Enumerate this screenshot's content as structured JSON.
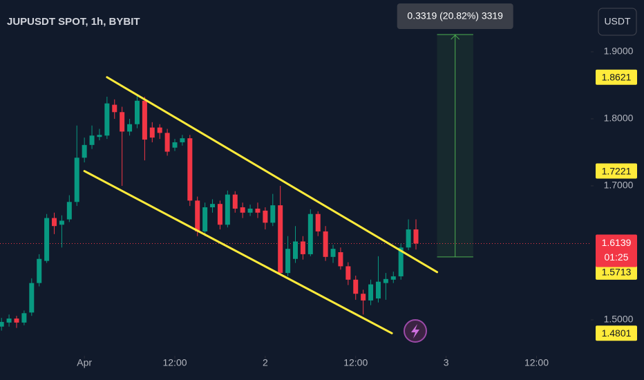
{
  "chart_data": {
    "type": "candlestick",
    "title": "JUPUSDT SPOT, 1h, BYBIT",
    "currency": "USDT",
    "up_color": "#089981",
    "down_color": "#f23645",
    "x": [
      -11,
      -10,
      -9,
      -8,
      -7,
      -6,
      -5,
      -4,
      -3,
      -2,
      -1,
      0,
      1,
      2,
      3,
      4,
      5,
      6,
      7,
      8,
      9,
      10,
      11,
      12,
      13,
      14,
      15,
      16,
      17,
      18,
      19,
      20,
      21,
      22,
      23,
      24,
      25,
      26,
      27,
      28,
      29,
      30,
      31,
      32,
      33,
      34,
      35,
      36,
      37,
      38,
      39,
      40,
      41,
      42,
      43,
      44
    ],
    "open": [
      1.49,
      1.496,
      1.502,
      1.496,
      1.511,
      1.555,
      1.588,
      1.652,
      1.642,
      1.65,
      1.676,
      1.742,
      1.761,
      1.773,
      1.775,
      1.821,
      1.81,
      1.781,
      1.792,
      1.827,
      1.787,
      1.787,
      1.779,
      1.757,
      1.765,
      1.771,
      1.678,
      1.632,
      1.668,
      1.673,
      1.642,
      1.687,
      1.668,
      1.66,
      1.666,
      1.663,
      1.645,
      1.671,
      1.57,
      1.591,
      1.617,
      1.598,
      1.658,
      1.632,
      1.594,
      1.601,
      1.58,
      1.56,
      1.539,
      1.529,
      1.532,
      1.555,
      1.56,
      1.565,
      1.608,
      1.635
    ],
    "high": [
      1.503,
      1.508,
      1.506,
      1.514,
      1.562,
      1.598,
      1.658,
      1.66,
      1.656,
      1.686,
      1.79,
      1.772,
      1.79,
      1.785,
      1.833,
      1.829,
      1.818,
      1.8,
      1.836,
      1.833,
      1.795,
      1.792,
      1.785,
      1.77,
      1.776,
      1.776,
      1.684,
      1.675,
      1.68,
      1.678,
      1.693,
      1.692,
      1.675,
      1.672,
      1.675,
      1.668,
      1.688,
      1.7,
      1.625,
      1.64,
      1.625,
      1.665,
      1.662,
      1.64,
      1.612,
      1.608,
      1.586,
      1.566,
      1.545,
      1.56,
      1.595,
      1.57,
      1.572,
      1.614,
      1.65,
      1.65
    ],
    "low": [
      1.484,
      1.49,
      1.488,
      1.492,
      1.506,
      1.55,
      1.585,
      1.628,
      1.608,
      1.646,
      1.67,
      1.735,
      1.755,
      1.768,
      1.77,
      1.8,
      1.7,
      1.775,
      1.786,
      1.738,
      1.765,
      1.77,
      1.745,
      1.752,
      1.76,
      1.67,
      1.625,
      1.625,
      1.66,
      1.635,
      1.638,
      1.66,
      1.652,
      1.655,
      1.652,
      1.635,
      1.64,
      1.567,
      1.565,
      1.585,
      1.59,
      1.595,
      1.625,
      1.588,
      1.585,
      1.575,
      1.552,
      1.53,
      1.508,
      1.522,
      1.526,
      1.53,
      1.555,
      1.56,
      1.604,
      1.605
    ],
    "close": [
      1.497,
      1.502,
      1.496,
      1.51,
      1.555,
      1.591,
      1.652,
      1.64,
      1.648,
      1.676,
      1.742,
      1.761,
      1.775,
      1.776,
      1.823,
      1.81,
      1.781,
      1.792,
      1.827,
      1.769,
      1.772,
      1.779,
      1.751,
      1.765,
      1.771,
      1.678,
      1.632,
      1.668,
      1.673,
      1.642,
      1.687,
      1.666,
      1.66,
      1.666,
      1.66,
      1.645,
      1.671,
      1.57,
      1.606,
      1.617,
      1.598,
      1.658,
      1.632,
      1.594,
      1.606,
      1.58,
      1.56,
      1.539,
      1.529,
      1.553,
      1.557,
      1.561,
      1.565,
      1.608,
      1.635,
      1.6139
    ],
    "xlim": [
      -11.2,
      67.2
    ],
    "xticks": [
      {
        "value": 0,
        "label": "Apr"
      },
      {
        "value": 12,
        "label": "12:00"
      },
      {
        "value": 24,
        "label": "2"
      },
      {
        "value": 36,
        "label": "12:00"
      },
      {
        "value": 48,
        "label": "3"
      },
      {
        "value": 60,
        "label": "12:00"
      }
    ],
    "ylim": [
      1.4464,
      1.9773
    ],
    "yticks": [
      {
        "value": 1.5,
        "label": "1.5000"
      },
      {
        "value": 1.7,
        "label": "1.7000"
      },
      {
        "value": 1.8,
        "label": "1.8000"
      },
      {
        "value": 1.9,
        "label": "1.9000"
      }
    ],
    "channels": [
      {
        "x": [
          3.0,
          46.8
        ],
        "values": [
          1.8621,
          1.5713
        ],
        "color": "#ffeb3b"
      },
      {
        "x": [
          0.0,
          40.8
        ],
        "values": [
          1.7221,
          1.4801
        ],
        "color": "#ffeb3b"
      }
    ],
    "measure": {
      "x": [
        46.8,
        51.6
      ],
      "values": [
        1.5939,
        1.9258
      ],
      "label": "0.3319 (20.82%) 3319",
      "color": "#4caf50"
    },
    "last_price": {
      "value": 1.6139,
      "countdown": "01:25"
    }
  }
}
